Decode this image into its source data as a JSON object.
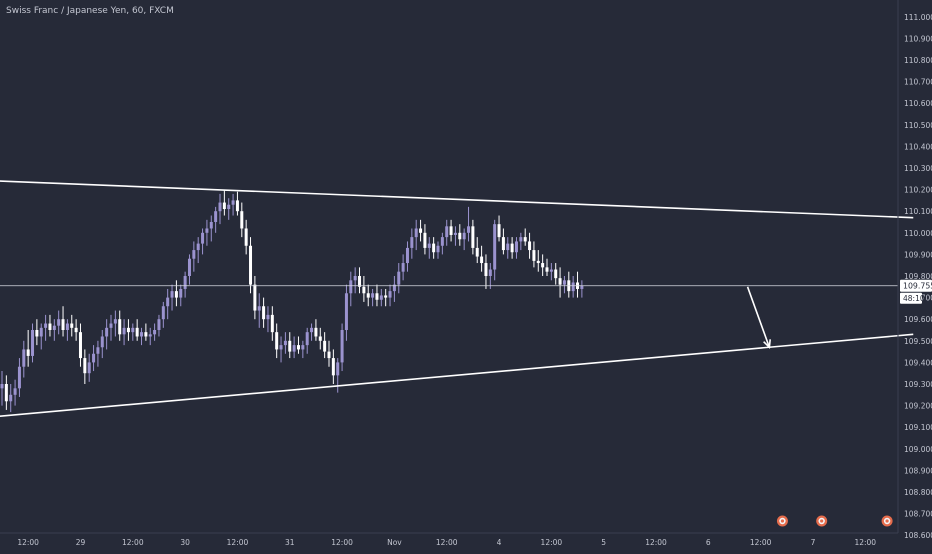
{
  "header": {
    "symbol_title": "Swiss Franc / Japanese Yen, 60, FXCM"
  },
  "chart_data": {
    "type": "candlestick",
    "title": "Swiss Franc / Japanese Yen, 60, FXCM",
    "ylim": [
      108.5,
      111.05
    ],
    "y_tick_step": 0.1,
    "grid": false,
    "y_ticks": [
      "111.000",
      "110.900",
      "110.800",
      "110.700",
      "110.600",
      "110.500",
      "110.400",
      "110.300",
      "110.200",
      "110.100",
      "110.000",
      "109.900",
      "109.800",
      "109.700",
      "109.600",
      "109.500",
      "109.400",
      "109.300",
      "109.200",
      "109.100",
      "109.000",
      "108.900",
      "108.800",
      "108.700",
      "108.600"
    ],
    "x_ticks": [
      {
        "label": "12:00",
        "slot": 6
      },
      {
        "label": "29",
        "slot": 18
      },
      {
        "label": "12:00",
        "slot": 30
      },
      {
        "label": "30",
        "slot": 42
      },
      {
        "label": "12:00",
        "slot": 54
      },
      {
        "label": "31",
        "slot": 66
      },
      {
        "label": "12:00",
        "slot": 78
      },
      {
        "label": "Nov",
        "slot": 90
      },
      {
        "label": "12:00",
        "slot": 102
      },
      {
        "label": "4",
        "slot": 114
      },
      {
        "label": "12:00",
        "slot": 126
      },
      {
        "label": "5",
        "slot": 138
      },
      {
        "label": "12:00",
        "slot": 150
      },
      {
        "label": "6",
        "slot": 162
      },
      {
        "label": "12:00",
        "slot": 174
      },
      {
        "label": "7",
        "slot": 186
      },
      {
        "label": "12:00",
        "slot": 198
      }
    ],
    "current_price": {
      "value": 109.755,
      "label": "109.755",
      "countdown": "48:10"
    },
    "trendlines": [
      {
        "name": "upper-resistance",
        "from": {
          "slot": -1,
          "price": 110.24
        },
        "to": {
          "slot": 209,
          "price": 110.07
        }
      },
      {
        "name": "lower-support",
        "from": {
          "slot": -1,
          "price": 109.15
        },
        "to": {
          "slot": 209,
          "price": 109.53
        }
      }
    ],
    "projection_arrow": {
      "from": {
        "slot": 171,
        "price": 109.75
      },
      "to": {
        "slot": 176,
        "price": 109.47
      }
    },
    "event_markers": [
      {
        "slot": 179,
        "color": "#e56c4c"
      },
      {
        "slot": 188,
        "color": "#e56c4c"
      },
      {
        "slot": 203,
        "color": "#e56c4c"
      }
    ],
    "colors": {
      "background": "#262a38",
      "up_candle": "#9b93cf",
      "down_candle": "#ffffff",
      "trendline": "#ffffff",
      "axis_text": "#c3c6d1",
      "price_tag_bg": "#ffffff",
      "price_tag_text": "#262a38"
    },
    "candles": [
      {
        "o": 109.28,
        "h": 109.36,
        "l": 109.2,
        "c": 109.3
      },
      {
        "o": 109.3,
        "h": 109.34,
        "l": 109.18,
        "c": 109.22
      },
      {
        "o": 109.22,
        "h": 109.3,
        "l": 109.17,
        "c": 109.25
      },
      {
        "o": 109.25,
        "h": 109.32,
        "l": 109.2,
        "c": 109.28
      },
      {
        "o": 109.28,
        "h": 109.42,
        "l": 109.24,
        "c": 109.38
      },
      {
        "o": 109.38,
        "h": 109.5,
        "l": 109.33,
        "c": 109.46
      },
      {
        "o": 109.46,
        "h": 109.55,
        "l": 109.38,
        "c": 109.43
      },
      {
        "o": 109.43,
        "h": 109.58,
        "l": 109.4,
        "c": 109.55
      },
      {
        "o": 109.55,
        "h": 109.6,
        "l": 109.48,
        "c": 109.52
      },
      {
        "o": 109.52,
        "h": 109.58,
        "l": 109.46,
        "c": 109.56
      },
      {
        "o": 109.56,
        "h": 109.62,
        "l": 109.5,
        "c": 109.58
      },
      {
        "o": 109.58,
        "h": 109.62,
        "l": 109.52,
        "c": 109.55
      },
      {
        "o": 109.55,
        "h": 109.6,
        "l": 109.5,
        "c": 109.57
      },
      {
        "o": 109.57,
        "h": 109.64,
        "l": 109.53,
        "c": 109.6
      },
      {
        "o": 109.6,
        "h": 109.66,
        "l": 109.52,
        "c": 109.55
      },
      {
        "o": 109.55,
        "h": 109.6,
        "l": 109.5,
        "c": 109.58
      },
      {
        "o": 109.58,
        "h": 109.62,
        "l": 109.52,
        "c": 109.56
      },
      {
        "o": 109.56,
        "h": 109.6,
        "l": 109.5,
        "c": 109.54
      },
      {
        "o": 109.54,
        "h": 109.58,
        "l": 109.38,
        "c": 109.42
      },
      {
        "o": 109.42,
        "h": 109.46,
        "l": 109.3,
        "c": 109.35
      },
      {
        "o": 109.35,
        "h": 109.44,
        "l": 109.31,
        "c": 109.4
      },
      {
        "o": 109.4,
        "h": 109.48,
        "l": 109.36,
        "c": 109.44
      },
      {
        "o": 109.44,
        "h": 109.5,
        "l": 109.38,
        "c": 109.47
      },
      {
        "o": 109.47,
        "h": 109.55,
        "l": 109.42,
        "c": 109.52
      },
      {
        "o": 109.52,
        "h": 109.6,
        "l": 109.46,
        "c": 109.56
      },
      {
        "o": 109.56,
        "h": 109.62,
        "l": 109.5,
        "c": 109.58
      },
      {
        "o": 109.58,
        "h": 109.64,
        "l": 109.52,
        "c": 109.6
      },
      {
        "o": 109.6,
        "h": 109.64,
        "l": 109.5,
        "c": 109.53
      },
      {
        "o": 109.53,
        "h": 109.6,
        "l": 109.48,
        "c": 109.56
      },
      {
        "o": 109.56,
        "h": 109.6,
        "l": 109.5,
        "c": 109.54
      },
      {
        "o": 109.54,
        "h": 109.58,
        "l": 109.5,
        "c": 109.56
      },
      {
        "o": 109.56,
        "h": 109.6,
        "l": 109.5,
        "c": 109.52
      },
      {
        "o": 109.52,
        "h": 109.56,
        "l": 109.48,
        "c": 109.54
      },
      {
        "o": 109.54,
        "h": 109.58,
        "l": 109.5,
        "c": 109.52
      },
      {
        "o": 109.52,
        "h": 109.56,
        "l": 109.48,
        "c": 109.53
      },
      {
        "o": 109.53,
        "h": 109.58,
        "l": 109.5,
        "c": 109.55
      },
      {
        "o": 109.55,
        "h": 109.62,
        "l": 109.52,
        "c": 109.6
      },
      {
        "o": 109.6,
        "h": 109.68,
        "l": 109.56,
        "c": 109.66
      },
      {
        "o": 109.66,
        "h": 109.74,
        "l": 109.6,
        "c": 109.7
      },
      {
        "o": 109.7,
        "h": 109.76,
        "l": 109.64,
        "c": 109.73
      },
      {
        "o": 109.73,
        "h": 109.78,
        "l": 109.66,
        "c": 109.7
      },
      {
        "o": 109.7,
        "h": 109.76,
        "l": 109.66,
        "c": 109.74
      },
      {
        "o": 109.74,
        "h": 109.82,
        "l": 109.7,
        "c": 109.8
      },
      {
        "o": 109.8,
        "h": 109.9,
        "l": 109.76,
        "c": 109.88
      },
      {
        "o": 109.88,
        "h": 109.96,
        "l": 109.82,
        "c": 109.92
      },
      {
        "o": 109.92,
        "h": 109.98,
        "l": 109.86,
        "c": 109.95
      },
      {
        "o": 109.95,
        "h": 110.02,
        "l": 109.9,
        "c": 110.0
      },
      {
        "o": 110.0,
        "h": 110.06,
        "l": 109.94,
        "c": 110.02
      },
      {
        "o": 110.02,
        "h": 110.08,
        "l": 109.96,
        "c": 110.05
      },
      {
        "o": 110.05,
        "h": 110.12,
        "l": 110.0,
        "c": 110.1
      },
      {
        "o": 110.1,
        "h": 110.18,
        "l": 110.04,
        "c": 110.14
      },
      {
        "o": 110.14,
        "h": 110.2,
        "l": 110.08,
        "c": 110.11
      },
      {
        "o": 110.11,
        "h": 110.16,
        "l": 110.06,
        "c": 110.13
      },
      {
        "o": 110.13,
        "h": 110.18,
        "l": 110.08,
        "c": 110.15
      },
      {
        "o": 110.15,
        "h": 110.19,
        "l": 110.08,
        "c": 110.1
      },
      {
        "o": 110.1,
        "h": 110.14,
        "l": 109.98,
        "c": 110.02
      },
      {
        "o": 110.02,
        "h": 110.06,
        "l": 109.9,
        "c": 109.94
      },
      {
        "o": 109.94,
        "h": 109.98,
        "l": 109.72,
        "c": 109.76
      },
      {
        "o": 109.76,
        "h": 109.8,
        "l": 109.6,
        "c": 109.64
      },
      {
        "o": 109.64,
        "h": 109.72,
        "l": 109.56,
        "c": 109.66
      },
      {
        "o": 109.66,
        "h": 109.7,
        "l": 109.56,
        "c": 109.6
      },
      {
        "o": 109.6,
        "h": 109.66,
        "l": 109.54,
        "c": 109.62
      },
      {
        "o": 109.62,
        "h": 109.66,
        "l": 109.5,
        "c": 109.54
      },
      {
        "o": 109.54,
        "h": 109.58,
        "l": 109.42,
        "c": 109.46
      },
      {
        "o": 109.46,
        "h": 109.52,
        "l": 109.4,
        "c": 109.48
      },
      {
        "o": 109.48,
        "h": 109.54,
        "l": 109.44,
        "c": 109.5
      },
      {
        "o": 109.5,
        "h": 109.54,
        "l": 109.42,
        "c": 109.45
      },
      {
        "o": 109.45,
        "h": 109.52,
        "l": 109.42,
        "c": 109.48
      },
      {
        "o": 109.48,
        "h": 109.52,
        "l": 109.44,
        "c": 109.46
      },
      {
        "o": 109.46,
        "h": 109.5,
        "l": 109.42,
        "c": 109.48
      },
      {
        "o": 109.48,
        "h": 109.56,
        "l": 109.44,
        "c": 109.54
      },
      {
        "o": 109.54,
        "h": 109.58,
        "l": 109.5,
        "c": 109.56
      },
      {
        "o": 109.56,
        "h": 109.6,
        "l": 109.5,
        "c": 109.52
      },
      {
        "o": 109.52,
        "h": 109.56,
        "l": 109.46,
        "c": 109.5
      },
      {
        "o": 109.5,
        "h": 109.54,
        "l": 109.42,
        "c": 109.45
      },
      {
        "o": 109.45,
        "h": 109.5,
        "l": 109.38,
        "c": 109.42
      },
      {
        "o": 109.42,
        "h": 109.46,
        "l": 109.3,
        "c": 109.34
      },
      {
        "o": 109.34,
        "h": 109.42,
        "l": 109.26,
        "c": 109.4
      },
      {
        "o": 109.4,
        "h": 109.58,
        "l": 109.36,
        "c": 109.55
      },
      {
        "o": 109.55,
        "h": 109.76,
        "l": 109.5,
        "c": 109.72
      },
      {
        "o": 109.72,
        "h": 109.82,
        "l": 109.66,
        "c": 109.78
      },
      {
        "o": 109.78,
        "h": 109.84,
        "l": 109.72,
        "c": 109.8
      },
      {
        "o": 109.8,
        "h": 109.84,
        "l": 109.72,
        "c": 109.75
      },
      {
        "o": 109.75,
        "h": 109.8,
        "l": 109.68,
        "c": 109.72
      },
      {
        "o": 109.72,
        "h": 109.76,
        "l": 109.66,
        "c": 109.7
      },
      {
        "o": 109.7,
        "h": 109.74,
        "l": 109.66,
        "c": 109.72
      },
      {
        "o": 109.72,
        "h": 109.76,
        "l": 109.66,
        "c": 109.69
      },
      {
        "o": 109.69,
        "h": 109.74,
        "l": 109.66,
        "c": 109.71
      },
      {
        "o": 109.71,
        "h": 109.74,
        "l": 109.66,
        "c": 109.7
      },
      {
        "o": 109.7,
        "h": 109.76,
        "l": 109.66,
        "c": 109.73
      },
      {
        "o": 109.73,
        "h": 109.8,
        "l": 109.68,
        "c": 109.76
      },
      {
        "o": 109.76,
        "h": 109.86,
        "l": 109.72,
        "c": 109.82
      },
      {
        "o": 109.82,
        "h": 109.9,
        "l": 109.78,
        "c": 109.86
      },
      {
        "o": 109.86,
        "h": 109.96,
        "l": 109.82,
        "c": 109.93
      },
      {
        "o": 109.93,
        "h": 110.02,
        "l": 109.88,
        "c": 109.98
      },
      {
        "o": 109.98,
        "h": 110.06,
        "l": 109.92,
        "c": 110.02
      },
      {
        "o": 110.02,
        "h": 110.06,
        "l": 109.96,
        "c": 110.0
      },
      {
        "o": 110.0,
        "h": 110.04,
        "l": 109.9,
        "c": 109.93
      },
      {
        "o": 109.93,
        "h": 109.98,
        "l": 109.88,
        "c": 109.95
      },
      {
        "o": 109.95,
        "h": 109.98,
        "l": 109.88,
        "c": 109.91
      },
      {
        "o": 109.91,
        "h": 109.96,
        "l": 109.88,
        "c": 109.94
      },
      {
        "o": 109.94,
        "h": 110.0,
        "l": 109.9,
        "c": 109.98
      },
      {
        "o": 109.98,
        "h": 110.06,
        "l": 109.94,
        "c": 110.03
      },
      {
        "o": 110.03,
        "h": 110.06,
        "l": 109.96,
        "c": 109.99
      },
      {
        "o": 109.99,
        "h": 110.03,
        "l": 109.94,
        "c": 110.0
      },
      {
        "o": 110.0,
        "h": 110.04,
        "l": 109.94,
        "c": 109.97
      },
      {
        "o": 109.97,
        "h": 110.02,
        "l": 109.92,
        "c": 110.0
      },
      {
        "o": 110.0,
        "h": 110.12,
        "l": 109.96,
        "c": 110.03
      },
      {
        "o": 110.03,
        "h": 110.06,
        "l": 109.9,
        "c": 109.93
      },
      {
        "o": 109.93,
        "h": 109.98,
        "l": 109.86,
        "c": 109.89
      },
      {
        "o": 109.89,
        "h": 109.94,
        "l": 109.82,
        "c": 109.86
      },
      {
        "o": 109.86,
        "h": 109.9,
        "l": 109.74,
        "c": 109.8
      },
      {
        "o": 109.8,
        "h": 109.86,
        "l": 109.74,
        "c": 109.83
      },
      {
        "o": 109.83,
        "h": 110.06,
        "l": 109.78,
        "c": 110.04
      },
      {
        "o": 110.04,
        "h": 110.08,
        "l": 109.96,
        "c": 109.98
      },
      {
        "o": 109.98,
        "h": 110.02,
        "l": 109.9,
        "c": 109.92
      },
      {
        "o": 109.92,
        "h": 109.98,
        "l": 109.88,
        "c": 109.95
      },
      {
        "o": 109.95,
        "h": 109.98,
        "l": 109.88,
        "c": 109.91
      },
      {
        "o": 109.91,
        "h": 109.98,
        "l": 109.88,
        "c": 109.96
      },
      {
        "o": 109.96,
        "h": 110.0,
        "l": 109.92,
        "c": 109.98
      },
      {
        "o": 109.98,
        "h": 110.02,
        "l": 109.94,
        "c": 109.96
      },
      {
        "o": 109.96,
        "h": 110.0,
        "l": 109.88,
        "c": 109.92
      },
      {
        "o": 109.92,
        "h": 109.96,
        "l": 109.84,
        "c": 109.87
      },
      {
        "o": 109.87,
        "h": 109.92,
        "l": 109.82,
        "c": 109.86
      },
      {
        "o": 109.86,
        "h": 109.9,
        "l": 109.8,
        "c": 109.84
      },
      {
        "o": 109.84,
        "h": 109.88,
        "l": 109.8,
        "c": 109.82
      },
      {
        "o": 109.82,
        "h": 109.86,
        "l": 109.78,
        "c": 109.83
      },
      {
        "o": 109.83,
        "h": 109.86,
        "l": 109.76,
        "c": 109.79
      },
      {
        "o": 109.79,
        "h": 109.84,
        "l": 109.7,
        "c": 109.76
      },
      {
        "o": 109.76,
        "h": 109.8,
        "l": 109.72,
        "c": 109.78
      },
      {
        "o": 109.78,
        "h": 109.82,
        "l": 109.7,
        "c": 109.73
      },
      {
        "o": 109.73,
        "h": 109.8,
        "l": 109.7,
        "c": 109.77
      },
      {
        "o": 109.77,
        "h": 109.82,
        "l": 109.7,
        "c": 109.74
      },
      {
        "o": 109.74,
        "h": 109.78,
        "l": 109.7,
        "c": 109.755
      }
    ]
  }
}
